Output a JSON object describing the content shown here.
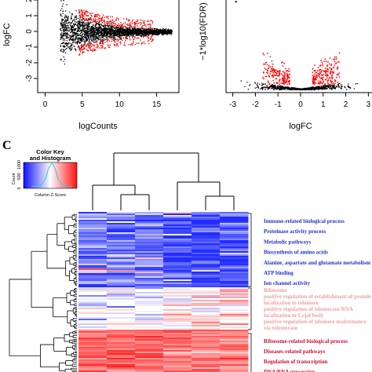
{
  "chart_data": [
    {
      "type": "scatter",
      "title": "",
      "xlabel": "logCounts",
      "ylabel": "logFC",
      "xlim": [
        -1,
        18
      ],
      "ylim": [
        -3.9,
        2.2
      ],
      "x_ticks": [
        "0",
        "5",
        "10",
        "15"
      ],
      "y_ticks": [
        "-3",
        "-2",
        "-1",
        "0",
        "1",
        "2"
      ],
      "series": [
        {
          "role": "not significant",
          "color": "#000000",
          "x": [
            2,
            17
          ],
          "y": [
            -1.2,
            1.8
          ]
        },
        {
          "role": "significant",
          "color": "#ff0000",
          "x": [
            4.5,
            16
          ],
          "y": [
            -2.2,
            2.1
          ]
        }
      ],
      "grid": false
    },
    {
      "type": "scatter",
      "title": "",
      "xlabel": "logFC",
      "ylabel": "−1*log10(FDR)",
      "xlim": [
        -3.3,
        3.3
      ],
      "ylim": [
        -0.3,
        9
      ],
      "x_ticks": [
        "-3",
        "-2",
        "-1",
        "0",
        "1",
        "2",
        "3"
      ],
      "series": [
        {
          "role": "not significant",
          "color": "#000000",
          "x": [
            -2.9,
            2.9
          ],
          "y": [
            0,
            1
          ]
        },
        {
          "role": "significant",
          "color": "#ff0000",
          "x": [
            -1.6,
            2.1
          ],
          "y": [
            0.5,
            4.2
          ]
        }
      ],
      "grid": false
    },
    {
      "type": "heatmap",
      "panel_label": "C",
      "color_key": {
        "title": "Color Key\nand Histogram",
        "xlabel": "Column Z-Score",
        "ylabel": "Count",
        "y_ticks": [
          "0",
          "500",
          "1000"
        ],
        "low_color": "#1010ff",
        "mid_color": "#ffffff",
        "high_color": "#ff1010"
      },
      "columns": 6,
      "clusters": [
        {
          "color": "#2233cc",
          "terms": [
            "Immune-related biological process",
            "Proteinase activity process",
            "Metabolic pathways",
            "Biosynthesis of amino acids",
            "Alanine, aspartate and glutamate metabolism",
            "ATP binding",
            "Ion channel activity"
          ]
        },
        {
          "color": "#f0a0a0",
          "terms": [
            "Ribosome",
            "positive regulation of establishment of protein",
            "localization to telomere",
            "positive regulation of telomerase RNA",
            "localization to Cajal body",
            "positive regulation of telomere maintenance",
            "via telomerase"
          ]
        },
        {
          "color": "#c8102e",
          "terms": [
            "Ribosome-related biological process",
            "Diseases-related pathways",
            "Regulation of transcription",
            "DNA/RNA processing"
          ]
        }
      ]
    }
  ]
}
